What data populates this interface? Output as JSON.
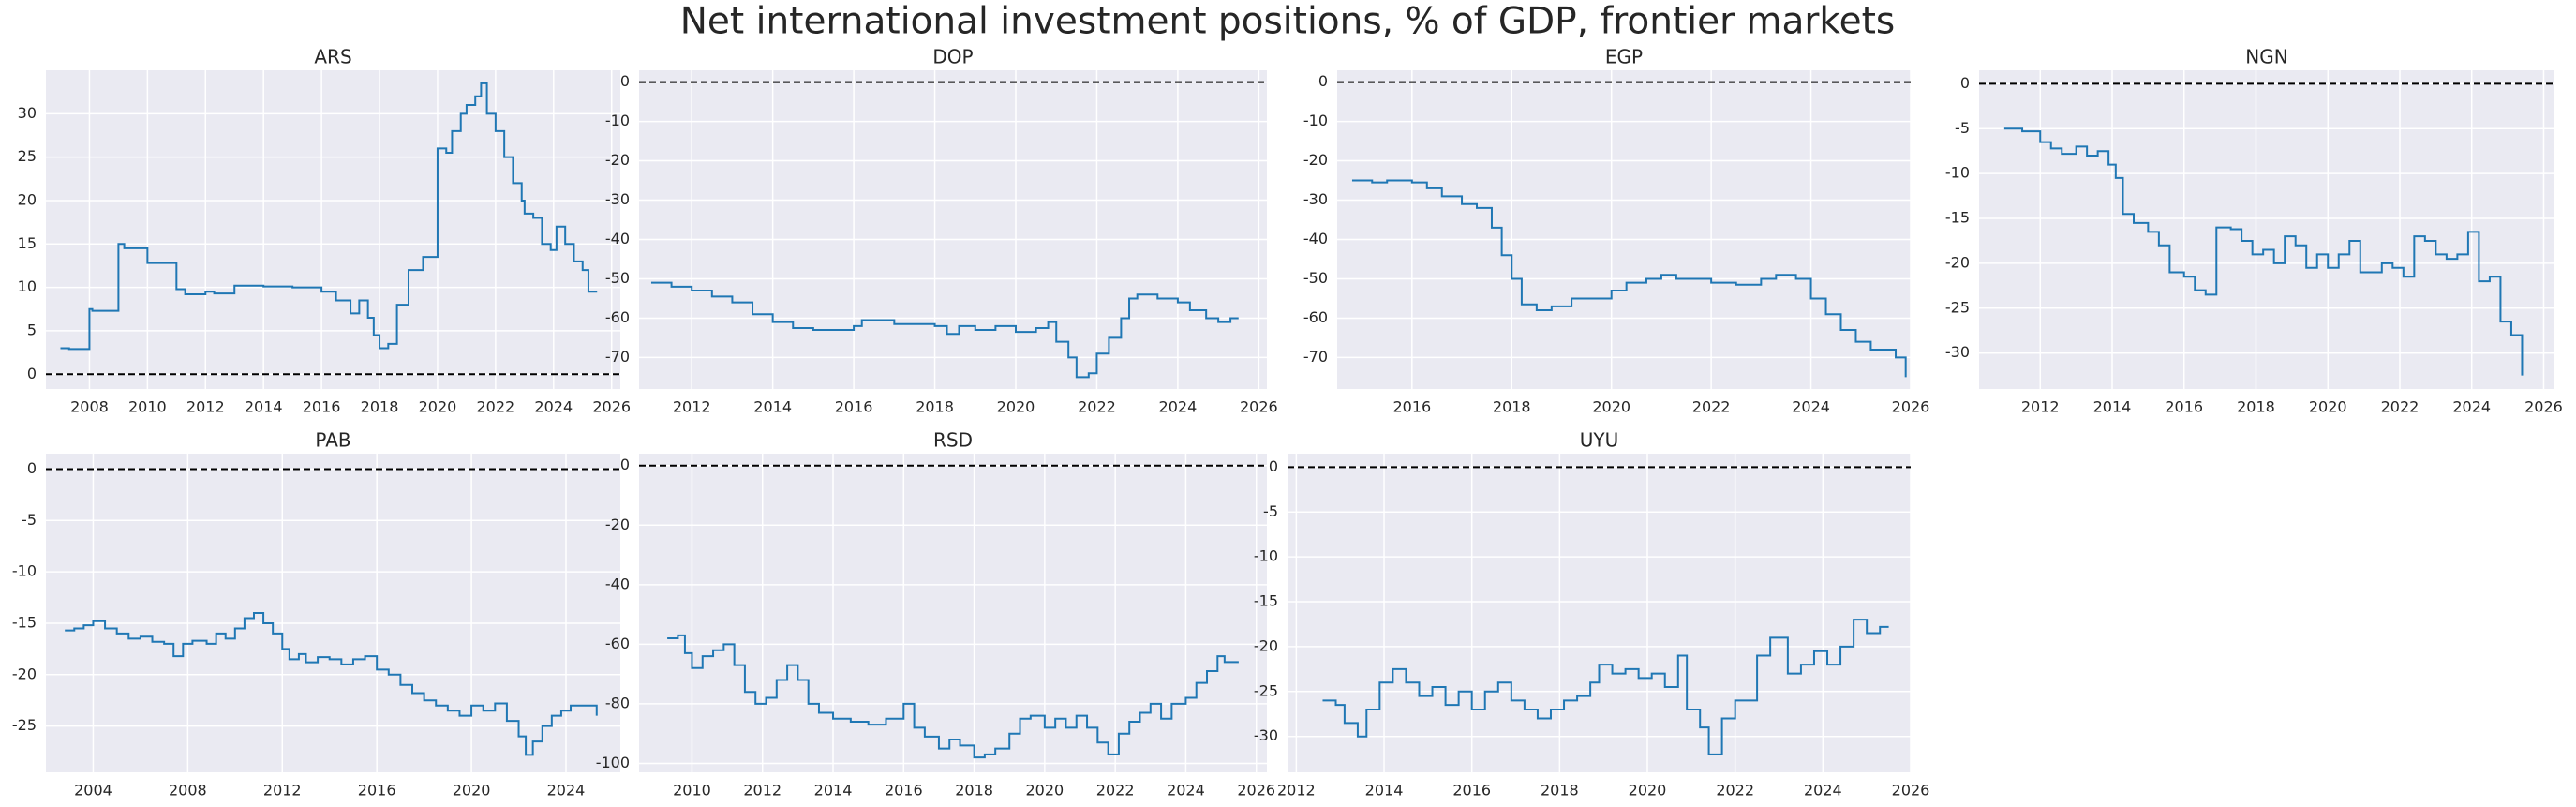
{
  "figure_title": "Net international investment positions, % of GDP, frontier markets",
  "chart_data": [
    {
      "type": "line",
      "title": "ARS",
      "color": "#1f77b4",
      "step": true,
      "reference_line": 0,
      "x": [
        2007.0,
        2007.3,
        2008.0,
        2008.1,
        2009.0,
        2009.2,
        2010.0,
        2011.0,
        2011.3,
        2012.0,
        2012.3,
        2013.0,
        2014.0,
        2015.0,
        2016.0,
        2016.5,
        2017.0,
        2017.3,
        2017.6,
        2017.8,
        2018.0,
        2018.3,
        2018.6,
        2019.0,
        2019.5,
        2020.0,
        2020.3,
        2020.5,
        2020.8,
        2021.0,
        2021.3,
        2021.5,
        2021.7,
        2022.0,
        2022.3,
        2022.6,
        2022.9,
        2023.0,
        2023.3,
        2023.6,
        2023.9,
        2024.1,
        2024.4,
        2024.7,
        2025.0,
        2025.2,
        2025.5
      ],
      "values": [
        3.0,
        2.9,
        7.5,
        7.3,
        15,
        14.5,
        12.8,
        9.8,
        9.2,
        9.5,
        9.3,
        10.2,
        10.1,
        10.0,
        9.5,
        8.5,
        7,
        8.5,
        6.5,
        4.5,
        3,
        3.5,
        8,
        12,
        13.5,
        26,
        25.5,
        28,
        30,
        31,
        32,
        33.5,
        30,
        28,
        25,
        22,
        20,
        18.5,
        18,
        15,
        14.3,
        17,
        15,
        13,
        12,
        9.5,
        9.5
      ],
      "xlim": [
        2006.5,
        2026.3
      ],
      "ylim": [
        -1.7,
        35
      ],
      "xticks": [
        2008,
        2010,
        2012,
        2014,
        2016,
        2018,
        2020,
        2022,
        2024,
        2026
      ],
      "yticks": [
        0,
        5,
        10,
        15,
        20,
        25,
        30
      ]
    },
    {
      "type": "line",
      "title": "DOP",
      "color": "#1f77b4",
      "step": true,
      "reference_line": 0,
      "x": [
        2011.0,
        2011.5,
        2012.0,
        2012.5,
        2013.0,
        2013.5,
        2014.0,
        2014.5,
        2015.0,
        2016.0,
        2016.2,
        2017.0,
        2018.0,
        2018.3,
        2018.6,
        2019.0,
        2019.5,
        2020.0,
        2020.5,
        2020.8,
        2021.0,
        2021.3,
        2021.5,
        2021.8,
        2022.0,
        2022.3,
        2022.6,
        2022.8,
        2023.0,
        2023.5,
        2024.0,
        2024.3,
        2024.7,
        2025.0,
        2025.3,
        2025.5
      ],
      "values": [
        -51,
        -52,
        -53,
        -54.5,
        -56,
        -59,
        -61,
        -62.5,
        -63,
        -62,
        -60.5,
        -61.5,
        -62,
        -64,
        -62,
        -63,
        -62,
        -63.5,
        -62.5,
        -61,
        -66,
        -70,
        -75,
        -74,
        -69,
        -65,
        -60,
        -55,
        -54,
        -55,
        -56,
        -58,
        -60,
        -61,
        -60,
        -60
      ],
      "xlim": [
        2010.7,
        2026.2
      ],
      "ylim": [
        -78,
        3
      ],
      "xticks": [
        2012,
        2014,
        2016,
        2018,
        2020,
        2022,
        2024,
        2026
      ],
      "yticks": [
        -70,
        -60,
        -50,
        -40,
        -30,
        -20,
        -10,
        0
      ]
    },
    {
      "type": "line",
      "title": "EGP",
      "color": "#1f77b4",
      "step": true,
      "reference_line": 0,
      "x": [
        2014.8,
        2015.2,
        2015.5,
        2016.0,
        2016.3,
        2016.6,
        2017.0,
        2017.3,
        2017.6,
        2017.8,
        2018.0,
        2018.2,
        2018.5,
        2018.8,
        2019.2,
        2020.0,
        2020.3,
        2020.7,
        2021.0,
        2021.3,
        2022.0,
        2022.5,
        2023.0,
        2023.3,
        2023.7,
        2024.0,
        2024.3,
        2024.6,
        2024.9,
        2025.2,
        2025.5,
        2025.7,
        2025.9
      ],
      "values": [
        -25,
        -25.5,
        -25,
        -25.5,
        -27,
        -29,
        -31,
        -32,
        -37,
        -44,
        -50,
        -56.5,
        -58,
        -57,
        -55,
        -53,
        -51,
        -50,
        -49,
        -50,
        -51,
        -51.5,
        -50,
        -49,
        -50,
        -55,
        -59,
        -63,
        -66,
        -68,
        -68,
        -70,
        -75
      ],
      "xlim": [
        2014.5,
        2026.0
      ],
      "ylim": [
        -78,
        3
      ],
      "xticks": [
        2016,
        2018,
        2020,
        2022,
        2024,
        2026
      ],
      "yticks": [
        -70,
        -60,
        -50,
        -40,
        -30,
        -20,
        -10,
        0
      ]
    },
    {
      "type": "line",
      "title": "NGN",
      "color": "#1f77b4",
      "step": true,
      "reference_line": 0,
      "x": [
        2011.0,
        2011.5,
        2012.0,
        2012.3,
        2012.6,
        2013.0,
        2013.3,
        2013.6,
        2013.9,
        2014.1,
        2014.3,
        2014.6,
        2015.0,
        2015.3,
        2015.6,
        2016.0,
        2016.3,
        2016.6,
        2016.9,
        2017.3,
        2017.6,
        2017.9,
        2018.2,
        2018.5,
        2018.8,
        2019.1,
        2019.4,
        2019.7,
        2020.0,
        2020.3,
        2020.6,
        2020.9,
        2021.2,
        2021.5,
        2021.8,
        2022.1,
        2022.4,
        2022.7,
        2023.0,
        2023.3,
        2023.6,
        2023.9,
        2024.2,
        2024.5,
        2024.8,
        2025.1,
        2025.4
      ],
      "values": [
        -5,
        -5.3,
        -6.5,
        -7.2,
        -7.8,
        -7,
        -8,
        -7.5,
        -9,
        -10.5,
        -14.5,
        -15.5,
        -16.5,
        -18,
        -21,
        -21.5,
        -23,
        -23.5,
        -16,
        -16.2,
        -17.5,
        -19,
        -18.5,
        -20,
        -17,
        -18,
        -20.5,
        -19,
        -20.5,
        -19,
        -17.5,
        -21,
        -21,
        -20,
        -20.5,
        -21.5,
        -17,
        -17.5,
        -19,
        -19.5,
        -19,
        -16.5,
        -22,
        -21.5,
        -26.5,
        -28,
        -32.5
      ],
      "xlim": [
        2010.3,
        2026.3
      ],
      "ylim": [
        -34,
        1.5
      ],
      "xticks": [
        2012,
        2014,
        2016,
        2018,
        2020,
        2022,
        2024,
        2026
      ],
      "yticks": [
        -30,
        -25,
        -20,
        -15,
        -10,
        -5,
        0
      ]
    },
    {
      "type": "line",
      "title": "PAB",
      "color": "#1f77b4",
      "step": true,
      "reference_line": 0,
      "x": [
        2002.8,
        2003.2,
        2003.6,
        2004.0,
        2004.5,
        2005.0,
        2005.5,
        2006.0,
        2006.5,
        2007.0,
        2007.4,
        2007.8,
        2008.2,
        2008.8,
        2009.2,
        2009.6,
        2010.0,
        2010.4,
        2010.8,
        2011.2,
        2011.6,
        2012.0,
        2012.3,
        2012.7,
        2013.0,
        2013.5,
        2014.0,
        2014.5,
        2015.0,
        2015.5,
        2016.0,
        2016.5,
        2017.0,
        2017.5,
        2018.0,
        2018.5,
        2019.0,
        2019.5,
        2020.0,
        2020.5,
        2021.0,
        2021.5,
        2022.0,
        2022.3,
        2022.6,
        2023.0,
        2023.4,
        2023.8,
        2024.2,
        2025.0,
        2025.3
      ],
      "values": [
        -15.7,
        -15.5,
        -15.2,
        -14.8,
        -15.5,
        -16,
        -16.5,
        -16.3,
        -16.8,
        -17,
        -18.2,
        -17,
        -16.7,
        -17,
        -16,
        -16.5,
        -15.5,
        -14.5,
        -14,
        -15,
        -16,
        -17.5,
        -18.5,
        -18,
        -18.8,
        -18.3,
        -18.5,
        -19,
        -18.5,
        -18.2,
        -19.5,
        -20,
        -21,
        -21.8,
        -22.5,
        -23,
        -23.5,
        -24,
        -23,
        -23.5,
        -22.8,
        -24.5,
        -26,
        -27.8,
        -26.5,
        -25,
        -24,
        -23.5,
        -23,
        -23,
        -24
      ],
      "xlim": [
        2002.0,
        2026.3
      ],
      "ylim": [
        -29.5,
        1.5
      ],
      "xticks": [
        2004,
        2008,
        2012,
        2016,
        2020,
        2024
      ],
      "yticks": [
        -25,
        -20,
        -15,
        -10,
        -5,
        0
      ]
    },
    {
      "type": "line",
      "title": "RSD",
      "color": "#1f77b4",
      "step": true,
      "reference_line": 0,
      "x": [
        2009.3,
        2009.6,
        2009.8,
        2010.0,
        2010.3,
        2010.6,
        2010.9,
        2011.2,
        2011.5,
        2011.8,
        2012.1,
        2012.4,
        2012.7,
        2013.0,
        2013.3,
        2013.6,
        2014.0,
        2014.5,
        2015.0,
        2015.5,
        2016.0,
        2016.3,
        2016.6,
        2017.0,
        2017.3,
        2017.6,
        2018.0,
        2018.3,
        2018.6,
        2019.0,
        2019.3,
        2019.6,
        2020.0,
        2020.3,
        2020.6,
        2020.9,
        2021.2,
        2021.5,
        2021.8,
        2022.1,
        2022.4,
        2022.7,
        2023.0,
        2023.3,
        2023.6,
        2024.0,
        2024.3,
        2024.6,
        2024.9,
        2025.1,
        2025.5
      ],
      "values": [
        -58,
        -57,
        -63,
        -68,
        -64,
        -62,
        -60,
        -67,
        -76,
        -80,
        -78,
        -72,
        -67,
        -72,
        -80,
        -83,
        -85,
        -86,
        -87,
        -85,
        -80,
        -88,
        -91,
        -95,
        -92,
        -94,
        -98,
        -97,
        -95,
        -90,
        -85,
        -84,
        -88,
        -85,
        -88,
        -84,
        -88,
        -93,
        -97,
        -90,
        -86,
        -83,
        -80,
        -85,
        -80,
        -78,
        -73,
        -69,
        -64,
        -66,
        -66
      ],
      "xlim": [
        2008.5,
        2026.3
      ],
      "ylim": [
        -103,
        4
      ],
      "xticks": [
        2010,
        2012,
        2014,
        2016,
        2018,
        2020,
        2022,
        2024,
        2026
      ],
      "yticks": [
        -100,
        -80,
        -60,
        -40,
        -20,
        0
      ]
    },
    {
      "type": "line",
      "title": "UYU",
      "color": "#1f77b4",
      "step": true,
      "reference_line": 0,
      "x": [
        2012.6,
        2012.9,
        2013.1,
        2013.4,
        2013.6,
        2013.9,
        2014.2,
        2014.5,
        2014.8,
        2015.1,
        2015.4,
        2015.7,
        2016.0,
        2016.3,
        2016.6,
        2016.9,
        2017.2,
        2017.5,
        2017.8,
        2018.1,
        2018.4,
        2018.7,
        2018.9,
        2019.2,
        2019.5,
        2019.8,
        2020.1,
        2020.4,
        2020.7,
        2020.9,
        2021.2,
        2021.4,
        2021.7,
        2022.0,
        2022.3,
        2022.5,
        2022.8,
        2023.2,
        2023.5,
        2023.8,
        2024.1,
        2024.4,
        2024.7,
        2025.0,
        2025.3,
        2025.5
      ],
      "values": [
        -26,
        -26.5,
        -28.5,
        -30,
        -27,
        -24,
        -22.5,
        -24,
        -25.5,
        -24.5,
        -26.5,
        -25,
        -27,
        -25,
        -24,
        -26,
        -27,
        -28,
        -27,
        -26,
        -25.5,
        -24,
        -22,
        -23,
        -22.5,
        -23.5,
        -23,
        -24.5,
        -21,
        -27,
        -29,
        -32,
        -28,
        -26,
        -26,
        -21,
        -19,
        -23,
        -22,
        -20.5,
        -22,
        -20,
        -17,
        -18.5,
        -17.8,
        -17.8
      ],
      "xlim": [
        2011.8,
        2026.0
      ],
      "ylim": [
        -34,
        1.5
      ],
      "xticks": [
        2012,
        2014,
        2016,
        2018,
        2020,
        2022,
        2024,
        2026
      ],
      "yticks": [
        -30,
        -25,
        -20,
        -15,
        -10,
        -5,
        0
      ]
    }
  ]
}
